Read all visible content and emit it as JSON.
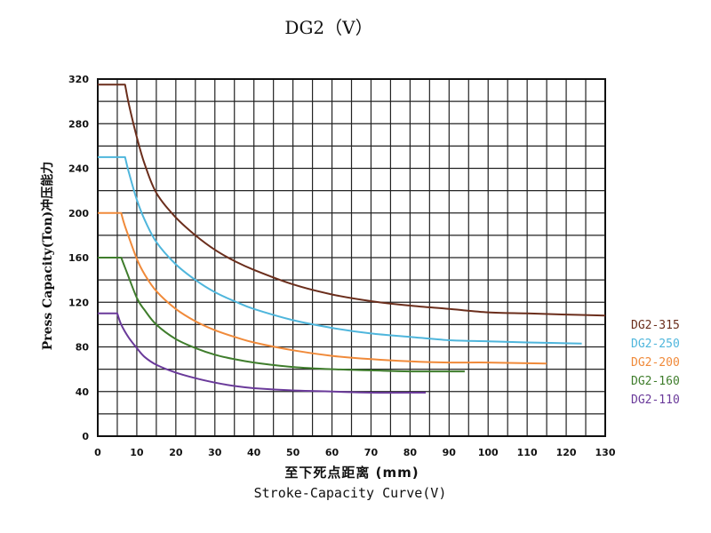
{
  "chart_data": {
    "type": "line",
    "title": "DG2（V）",
    "ylabel": "Press Capacity(Ton)冲压能力",
    "xlabel": "至下死点距离 (mm)",
    "xlabel2": "Stroke-Capacity Curve(V)",
    "xlim": [
      0,
      130
    ],
    "ylim": [
      0,
      320
    ],
    "x_ticks": [
      "0",
      "10",
      "20",
      "30",
      "40",
      "50",
      "60",
      "70",
      "80",
      "90",
      "100",
      "110",
      "120",
      "130"
    ],
    "y_ticks": [
      "0",
      "40",
      "80",
      "120",
      "160",
      "200",
      "240",
      "280",
      "320"
    ],
    "x_grid_step": 5,
    "y_grid_step": 20,
    "grid": true,
    "legend_position": "right",
    "series": [
      {
        "name": "DG2-315",
        "color": "#6b2e1c",
        "points": [
          [
            0,
            315
          ],
          [
            7,
            315
          ],
          [
            8,
            297
          ],
          [
            10,
            268
          ],
          [
            12,
            244
          ],
          [
            15,
            218
          ],
          [
            20,
            196
          ],
          [
            25,
            180
          ],
          [
            30,
            167
          ],
          [
            35,
            157
          ],
          [
            40,
            149
          ],
          [
            50,
            136
          ],
          [
            60,
            127
          ],
          [
            70,
            121
          ],
          [
            80,
            117
          ],
          [
            90,
            114
          ],
          [
            100,
            111
          ],
          [
            110,
            110
          ],
          [
            120,
            109
          ],
          [
            130,
            108
          ]
        ]
      },
      {
        "name": "DG2-250",
        "color": "#4fb6dc",
        "points": [
          [
            0,
            250
          ],
          [
            7,
            250
          ],
          [
            8,
            236
          ],
          [
            10,
            212
          ],
          [
            12,
            194
          ],
          [
            15,
            174
          ],
          [
            20,
            154
          ],
          [
            25,
            140
          ],
          [
            30,
            129
          ],
          [
            35,
            121
          ],
          [
            40,
            114
          ],
          [
            50,
            104
          ],
          [
            60,
            97
          ],
          [
            70,
            92
          ],
          [
            80,
            89
          ],
          [
            90,
            86
          ],
          [
            100,
            85
          ],
          [
            110,
            84
          ],
          [
            124,
            83
          ]
        ]
      },
      {
        "name": "DG2-200",
        "color": "#f08a3a",
        "points": [
          [
            0,
            200
          ],
          [
            6,
            200
          ],
          [
            7,
            188
          ],
          [
            10,
            159
          ],
          [
            12,
            145
          ],
          [
            15,
            130
          ],
          [
            20,
            114
          ],
          [
            25,
            103
          ],
          [
            30,
            95
          ],
          [
            35,
            89
          ],
          [
            40,
            84
          ],
          [
            50,
            77
          ],
          [
            60,
            72
          ],
          [
            70,
            69
          ],
          [
            80,
            67
          ],
          [
            90,
            66
          ],
          [
            100,
            66
          ],
          [
            115,
            65
          ]
        ]
      },
      {
        "name": "DG2-160",
        "color": "#3f7d2c",
        "points": [
          [
            0,
            160
          ],
          [
            6,
            160
          ],
          [
            7,
            151
          ],
          [
            10,
            124
          ],
          [
            12,
            113
          ],
          [
            15,
            100
          ],
          [
            20,
            87
          ],
          [
            25,
            79
          ],
          [
            30,
            73
          ],
          [
            35,
            69
          ],
          [
            40,
            66
          ],
          [
            50,
            62
          ],
          [
            60,
            60
          ],
          [
            70,
            59
          ],
          [
            80,
            58
          ],
          [
            94,
            58
          ]
        ]
      },
      {
        "name": "DG2-110",
        "color": "#6a3a9a",
        "points": [
          [
            0,
            110
          ],
          [
            5,
            110
          ],
          [
            6,
            100
          ],
          [
            8,
            88
          ],
          [
            10,
            79
          ],
          [
            12,
            71
          ],
          [
            15,
            64
          ],
          [
            20,
            57
          ],
          [
            25,
            52
          ],
          [
            30,
            48
          ],
          [
            35,
            45
          ],
          [
            40,
            43
          ],
          [
            50,
            41
          ],
          [
            60,
            40
          ],
          [
            70,
            39
          ],
          [
            84,
            39
          ]
        ]
      }
    ]
  }
}
